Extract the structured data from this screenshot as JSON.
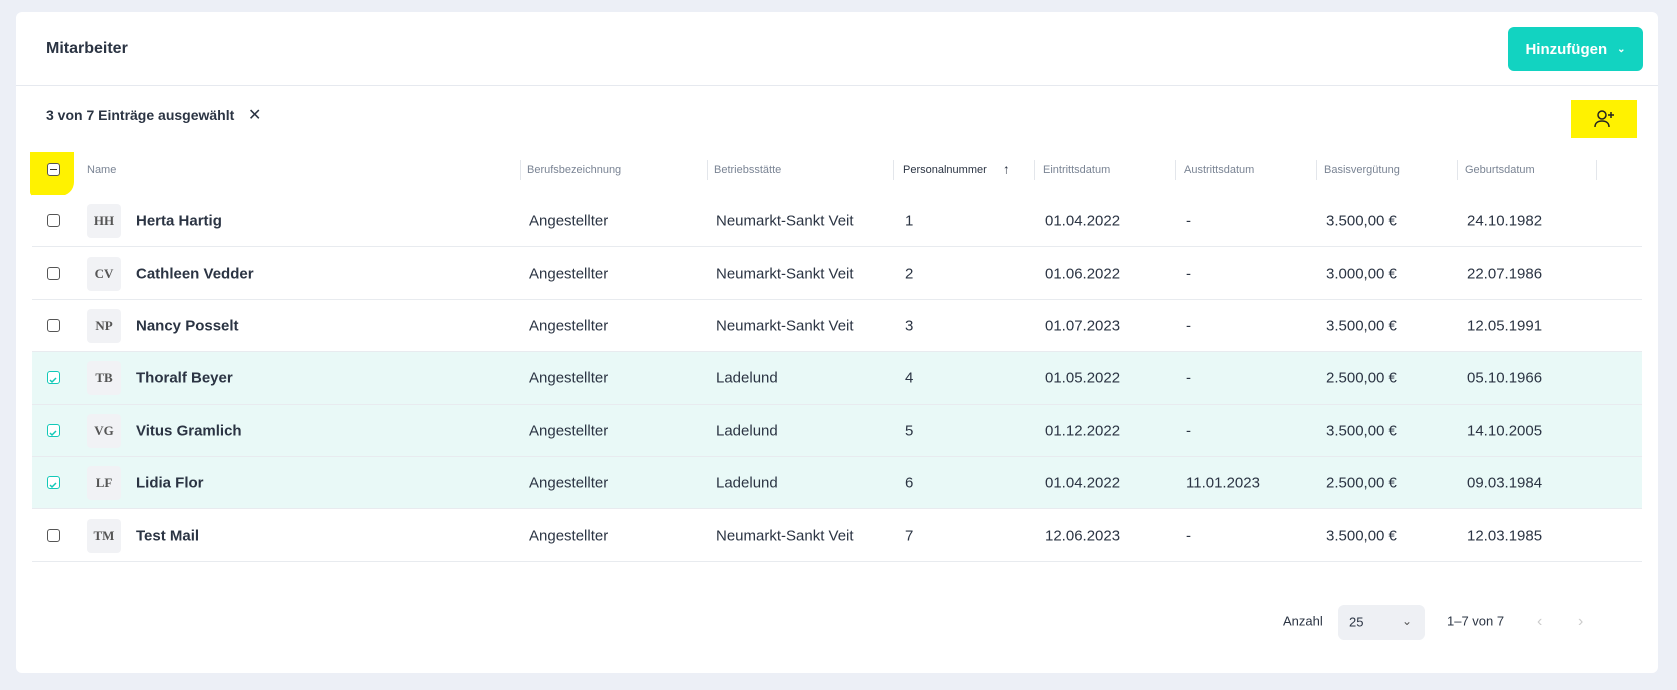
{
  "header": {
    "title": "Mitarbeiter",
    "add_button": "Hinzufügen"
  },
  "selection": {
    "text": "3 von 7 Einträge ausgewählt"
  },
  "table": {
    "columns": [
      "Name",
      "Berufsbezeichnung",
      "Betriebsstätte",
      "Personalnummer",
      "Eintrittsdatum",
      "Austrittsdatum",
      "Basisvergütung",
      "Geburtsdatum"
    ],
    "sorted_column": 3,
    "rows": [
      {
        "selected": false,
        "initials": "HH",
        "cells": [
          "Herta Hartig",
          "Angestellter",
          "Neumarkt-Sankt Veit",
          "1",
          "01.04.2022",
          "-",
          "3.500,00 €",
          "24.10.1982"
        ]
      },
      {
        "selected": false,
        "initials": "CV",
        "cells": [
          "Cathleen Vedder",
          "Angestellter",
          "Neumarkt-Sankt Veit",
          "2",
          "01.06.2022",
          "-",
          "3.000,00 €",
          "22.07.1986"
        ]
      },
      {
        "selected": false,
        "initials": "NP",
        "cells": [
          "Nancy Posselt",
          "Angestellter",
          "Neumarkt-Sankt Veit",
          "3",
          "01.07.2023",
          "-",
          "3.500,00 €",
          "12.05.1991"
        ]
      },
      {
        "selected": true,
        "initials": "TB",
        "cells": [
          "Thoralf Beyer",
          "Angestellter",
          "Ladelund",
          "4",
          "01.05.2022",
          "-",
          "2.500,00 €",
          "05.10.1966"
        ]
      },
      {
        "selected": true,
        "initials": "VG",
        "cells": [
          "Vitus Gramlich",
          "Angestellter",
          "Ladelund",
          "5",
          "01.12.2022",
          "-",
          "3.500,00 €",
          "14.10.2005"
        ]
      },
      {
        "selected": true,
        "initials": "LF",
        "cells": [
          "Lidia Flor",
          "Angestellter",
          "Ladelund",
          "6",
          "01.04.2022",
          "11.01.2023",
          "2.500,00 €",
          "09.03.1984"
        ]
      },
      {
        "selected": false,
        "initials": "TM",
        "cells": [
          "Test Mail",
          "Angestellter",
          "Neumarkt-Sankt Veit",
          "7",
          "12.06.2023",
          "-",
          "3.500,00 €",
          "12.03.1985"
        ]
      }
    ]
  },
  "pagination": {
    "label": "Anzahl",
    "page_size": "25",
    "range": "1–7 von 7"
  }
}
